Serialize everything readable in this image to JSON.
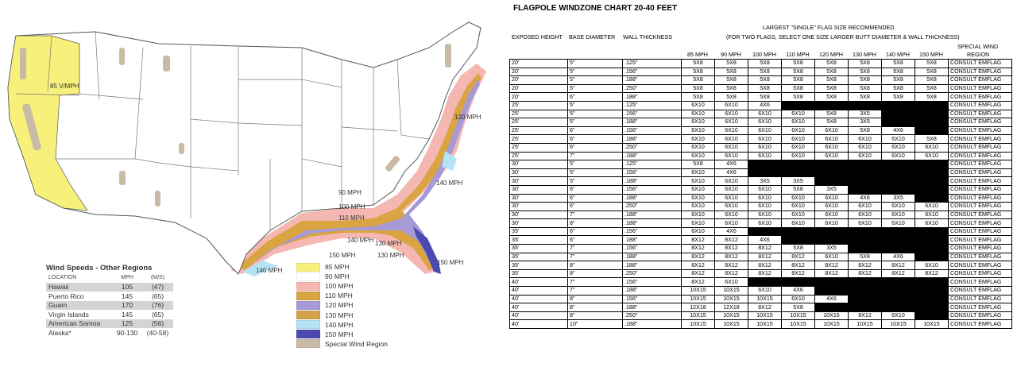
{
  "map": {
    "zone_labels": [
      "85 V/MPH",
      "120 MPH",
      "140 MPH",
      "90 MPH",
      "100 MPH",
      "110 MPH",
      "140 MPH",
      "130 MPH",
      "150 MPH",
      "130 MPH",
      "150 MPH",
      "140 MPH"
    ],
    "other_regions": {
      "title": "Wind Speeds - Other Regions",
      "headers": [
        "Location",
        "MPH",
        "(M/S)"
      ],
      "rows": [
        {
          "location": "Hawaii",
          "mph": "105",
          "ms": "(47)"
        },
        {
          "location": "Puerto Rico",
          "mph": "145",
          "ms": "(65)"
        },
        {
          "location": "Guam",
          "mph": "170",
          "ms": "(76)"
        },
        {
          "location": "Virgin Islands",
          "mph": "145",
          "ms": "(65)"
        },
        {
          "location": "American Samoa",
          "mph": "125",
          "ms": "(56)"
        },
        {
          "location": "Alaska*",
          "mph": "90-130",
          "ms": "(40-58)"
        }
      ]
    },
    "legend": [
      {
        "label": "85 MPH",
        "color": "#f7f07a"
      },
      {
        "label": "90 MPH",
        "color": "#ffffff"
      },
      {
        "label": "100 MPH",
        "color": "#f5b7b1"
      },
      {
        "label": "110 MPH",
        "color": "#d9a441"
      },
      {
        "label": "120 MPH",
        "color": "#a59ad6"
      },
      {
        "label": "130 MPH",
        "color": "#d4a24c"
      },
      {
        "label": "140 MPH",
        "color": "#b5e3f5"
      },
      {
        "label": "150 MPH",
        "color": "#4a4ab0"
      },
      {
        "label": "Special Wind Region",
        "color": "#c8baa5"
      }
    ]
  },
  "chart": {
    "title": "FLAGPOLE WINDZONE CHART 20-40 FEET",
    "header_left": [
      "EXPOSED HEIGHT",
      "BASE DIAMETER",
      "WALL THICKNESS"
    ],
    "header_main_1": "LARGEST \"SINGLE\" FLAG SIZE RECOMMENDED",
    "header_main_2": "(FOR TWO FLAGS, SELECT ONE SIZE LARGER BUTT DIAMETER & WALL THICKNESS)",
    "special_1": "SPECIAL WIND",
    "special_2": "REGION",
    "speeds": [
      "85 MPH",
      "90 MPH",
      "100 MPH",
      "110 MPH",
      "120 MPH",
      "130 MPH",
      "140 MPH",
      "150 MPH"
    ],
    "rows": [
      {
        "h": "20'",
        "d": "5\"",
        "w": ".125\"",
        "v": [
          "5X8",
          "5X8",
          "5X8",
          "5X8",
          "5X8",
          "5X8",
          "5X8",
          "5X8"
        ]
      },
      {
        "h": "20'",
        "d": "5\"",
        "w": ".156\"",
        "v": [
          "5X8",
          "5X8",
          "5X8",
          "5X8",
          "5X8",
          "5X8",
          "5X8",
          "5X8"
        ]
      },
      {
        "h": "20'",
        "d": "5\"",
        "w": ".188\"",
        "v": [
          "5X8",
          "5X8",
          "5X8",
          "5X8",
          "5X8",
          "5X8",
          "5X8",
          "5X8"
        ]
      },
      {
        "h": "20'",
        "d": "5\"",
        "w": ".250\"",
        "v": [
          "5X8",
          "5X8",
          "5X8",
          "5X8",
          "5X8",
          "5X8",
          "5X8",
          "5X8"
        ]
      },
      {
        "h": "20'",
        "d": "6\"",
        "w": ".188\"",
        "v": [
          "5X8",
          "5X8",
          "5X8",
          "5X8",
          "5X8",
          "5X8",
          "5X8",
          "5X8"
        ]
      },
      {
        "h": "25'",
        "d": "5\"",
        "w": ".125\"",
        "v": [
          "6X10",
          "6X10",
          "4X6",
          "",
          "",
          "",
          "",
          ""
        ]
      },
      {
        "h": "25'",
        "d": "5\"",
        "w": ".156\"",
        "v": [
          "6X10",
          "6X10",
          "6X10",
          "6X10",
          "5X8",
          "3X5",
          "",
          ""
        ]
      },
      {
        "h": "25'",
        "d": "5\"",
        "w": ".188\"",
        "v": [
          "6X10",
          "6X10",
          "6X10",
          "6X10",
          "5X8",
          "3X5",
          "",
          ""
        ]
      },
      {
        "h": "25'",
        "d": "6\"",
        "w": ".156\"",
        "v": [
          "6X10",
          "6X10",
          "6X10",
          "6X10",
          "6X10",
          "5X8",
          "4X6",
          ""
        ]
      },
      {
        "h": "25'",
        "d": "6\"",
        "w": ".188\"",
        "v": [
          "6X10",
          "6X10",
          "6X10",
          "6X10",
          "6X10",
          "6X10",
          "6X10",
          "5X8"
        ]
      },
      {
        "h": "25'",
        "d": "6\"",
        "w": ".250\"",
        "v": [
          "6X10",
          "6X10",
          "6X10",
          "6X10",
          "6X10",
          "6X10",
          "6X10",
          "6X10"
        ]
      },
      {
        "h": "25'",
        "d": "7\"",
        "w": ".188\"",
        "v": [
          "6X10",
          "6X10",
          "6X10",
          "6X10",
          "6X10",
          "6X10",
          "6X10",
          "6X10"
        ]
      },
      {
        "h": "30'",
        "d": "5\"",
        "w": ".125\"",
        "v": [
          "5X8",
          "4X6",
          "",
          "",
          "",
          "",
          "",
          ""
        ]
      },
      {
        "h": "30'",
        "d": "5\"",
        "w": ".156\"",
        "v": [
          "6X10",
          "4X6",
          "",
          "",
          "",
          "",
          "",
          ""
        ]
      },
      {
        "h": "30'",
        "d": "5\"",
        "w": ".188\"",
        "v": [
          "6X10",
          "6X10",
          "3X5",
          "3X5",
          "",
          "",
          "",
          ""
        ]
      },
      {
        "h": "30'",
        "d": "6\"",
        "w": ".156\"",
        "v": [
          "6X10",
          "6X10",
          "6X10",
          "5X8",
          "3X5",
          "",
          "",
          ""
        ]
      },
      {
        "h": "30'",
        "d": "6\"",
        "w": ".188\"",
        "v": [
          "6X10",
          "6X10",
          "6X10",
          "6X10",
          "6X10",
          "4X6",
          "3X5",
          ""
        ]
      },
      {
        "h": "30'",
        "d": "6\"",
        "w": ".250\"",
        "v": [
          "6X10",
          "6X10",
          "6X10",
          "6X10",
          "6X10",
          "6X10",
          "6X10",
          "6X10"
        ]
      },
      {
        "h": "30'",
        "d": "7\"",
        "w": ".188\"",
        "v": [
          "6X10",
          "6X10",
          "6X10",
          "6X10",
          "6X10",
          "6X10",
          "6X10",
          "6X10"
        ]
      },
      {
        "h": "30'",
        "d": "8\"",
        "w": ".188\"",
        "v": [
          "6X10",
          "6X10",
          "6X10",
          "6X10",
          "6X10",
          "6X10",
          "6X10",
          "6X10"
        ]
      },
      {
        "h": "35'",
        "d": "6\"",
        "w": ".156\"",
        "v": [
          "6X10",
          "4X6",
          "",
          "",
          "",
          "",
          "",
          ""
        ]
      },
      {
        "h": "35'",
        "d": "6\"",
        "w": ".188\"",
        "v": [
          "8X12",
          "8X12",
          "4X6",
          "",
          "",
          "",
          "",
          ""
        ]
      },
      {
        "h": "35'",
        "d": "7\"",
        "w": ".156\"",
        "v": [
          "8X12",
          "8X12",
          "8X12",
          "5X8",
          "3X5",
          "",
          "",
          ""
        ]
      },
      {
        "h": "35'",
        "d": "7\"",
        "w": ".188\"",
        "v": [
          "8X12",
          "8X12",
          "8X12",
          "8X12",
          "6X10",
          "5X8",
          "4X6",
          ""
        ]
      },
      {
        "h": "35'",
        "d": "8\"",
        "w": ".188\"",
        "v": [
          "8X12",
          "8X12",
          "8X12",
          "8X12",
          "8X12",
          "8X12",
          "8X12",
          "6X10"
        ]
      },
      {
        "h": "35'",
        "d": "8\"",
        "w": ".250\"",
        "v": [
          "8X12",
          "8X12",
          "8X12",
          "8X12",
          "8X12",
          "8X12",
          "8X12",
          "8X12"
        ]
      },
      {
        "h": "40'",
        "d": "7\"",
        "w": ".156\"",
        "v": [
          "8X12",
          "6X10",
          "",
          "",
          "",
          "",
          "",
          ""
        ]
      },
      {
        "h": "40'",
        "d": "7\"",
        "w": ".188\"",
        "v": [
          "10X15",
          "10X15",
          "6X10",
          "4X6",
          "",
          "",
          "",
          ""
        ]
      },
      {
        "h": "40'",
        "d": "8\"",
        "w": ".156\"",
        "v": [
          "10X15",
          "10X15",
          "10X15",
          "6X10",
          "4X6",
          "",
          "",
          ""
        ]
      },
      {
        "h": "40'",
        "d": "8\"",
        "w": ".188\"",
        "v": [
          "12X18",
          "12X18",
          "8X12",
          "5X8",
          "",
          "",
          "",
          ""
        ]
      },
      {
        "h": "40'",
        "d": "8\"",
        "w": ".250\"",
        "v": [
          "10X15",
          "10X15",
          "10X15",
          "10X15",
          "10X15",
          "8X12",
          "6X10",
          ""
        ]
      },
      {
        "h": "40'",
        "d": "10\"",
        "w": ".188\"",
        "v": [
          "10X15",
          "10X15",
          "10X15",
          "10X15",
          "10X15",
          "10X15",
          "10X15",
          "10X15"
        ]
      }
    ],
    "special_value": "CONSULT EMFLAG"
  }
}
